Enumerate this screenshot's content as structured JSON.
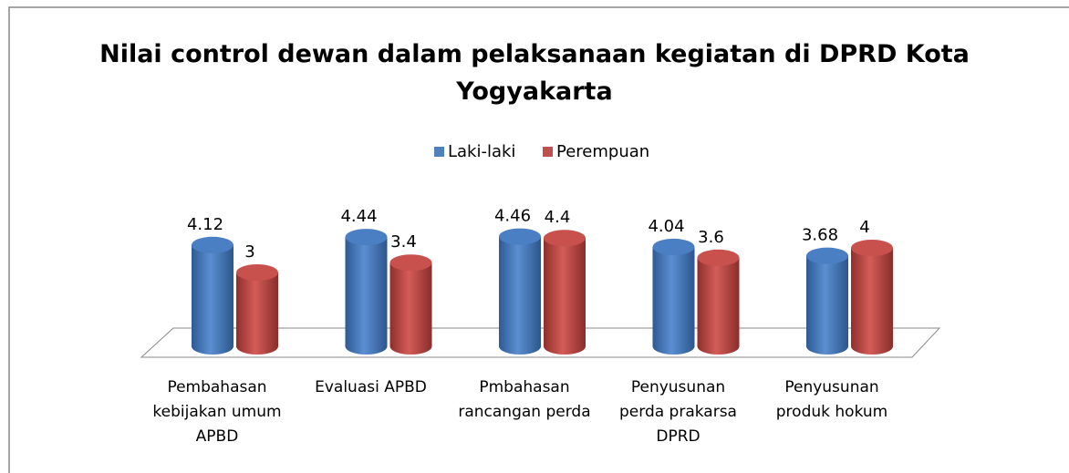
{
  "chart_data": {
    "type": "bar3d",
    "title": "Nilai control dewan dalam pelaksanaan kegiatan di DPRD Kota Yogyakarta",
    "categories": [
      "Pembahasan kebijakan umum APBD",
      "Evaluasi APBD",
      "Pmbahasan rancangan perda",
      "Penyusunan perda prakarsa DPRD",
      "Penyusunan produk hokum"
    ],
    "series": [
      {
        "name": "Laki-laki",
        "color": "#4f81bd",
        "values": [
          4.12,
          4.44,
          4.46,
          4.04,
          3.68
        ]
      },
      {
        "name": "Perempuan",
        "color": "#c0504d",
        "values": [
          3,
          3.4,
          4.4,
          3.6,
          4
        ]
      }
    ],
    "legend": "top"
  }
}
